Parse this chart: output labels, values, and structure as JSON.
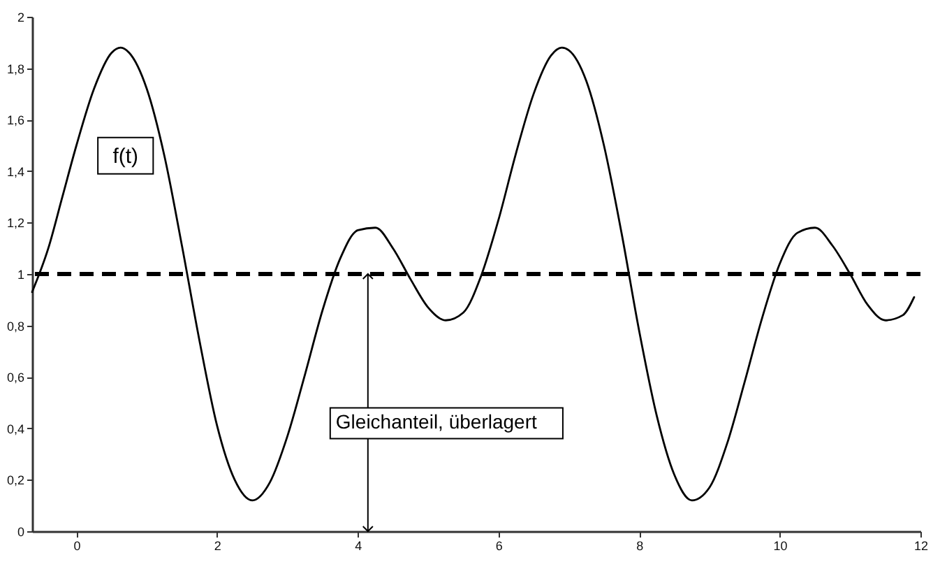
{
  "chart_data": {
    "type": "line",
    "x": [
      -0.63,
      -0.4,
      -0.2,
      0,
      0.25,
      0.5,
      0.63,
      0.75,
      1,
      1.25,
      1.5,
      1.75,
      2,
      2.25,
      2.5,
      2.75,
      3,
      3.25,
      3.5,
      3.75,
      4,
      4.25,
      4.5,
      4.75,
      5,
      5.25,
      5.5,
      5.75,
      6,
      6.25,
      6.5,
      6.75,
      6.9,
      7,
      7.25,
      7.5,
      7.75,
      8,
      8.25,
      8.5,
      8.75,
      9,
      9.25,
      9.5,
      9.75,
      10,
      10.25,
      10.5,
      10.75,
      11,
      11.25,
      11.5,
      11.75,
      11.91
    ],
    "series": [
      {
        "name": "f(t)",
        "color": "#000000",
        "values": [
          0.93,
          1.1,
          1.3,
          1.5,
          1.72,
          1.86,
          1.88,
          1.86,
          1.72,
          1.46,
          1.11,
          0.74,
          0.41,
          0.2,
          0.12,
          0.19,
          0.37,
          0.61,
          0.86,
          1.06,
          1.17,
          1.18,
          1.1,
          0.98,
          0.87,
          0.82,
          0.85,
          0.99,
          1.21,
          1.47,
          1.7,
          1.85,
          1.88,
          1.87,
          1.75,
          1.5,
          1.16,
          0.78,
          0.45,
          0.22,
          0.12,
          0.17,
          0.34,
          0.58,
          0.83,
          1.04,
          1.16,
          1.18,
          1.11,
          1.0,
          0.88,
          0.82,
          0.84,
          0.91
        ]
      }
    ],
    "xlim": [
      -0.63,
      12
    ],
    "xticks": [
      0,
      2,
      4,
      6,
      8,
      10,
      12
    ],
    "ylim": [
      0,
      2
    ],
    "yticks": [
      0,
      {
        "value": 0.2,
        "label": "0,2"
      },
      {
        "value": 0.4,
        "label": "0,4"
      },
      {
        "value": 0.6,
        "label": "0,6"
      },
      {
        "value": 0.8,
        "label": "0,8"
      },
      1,
      {
        "value": 1.2,
        "label": "1,2"
      },
      {
        "value": 1.4,
        "label": "1,4"
      },
      {
        "value": 1.6,
        "label": "1,6"
      },
      {
        "value": 1.8,
        "label": "1,8"
      },
      2
    ],
    "ref_lines": [
      {
        "axis": "y",
        "value": 1,
        "line_style": "dashed",
        "color": "#000000"
      }
    ],
    "annotations": [
      "Gleichanteil, überlagert"
    ],
    "grid": false
  }
}
